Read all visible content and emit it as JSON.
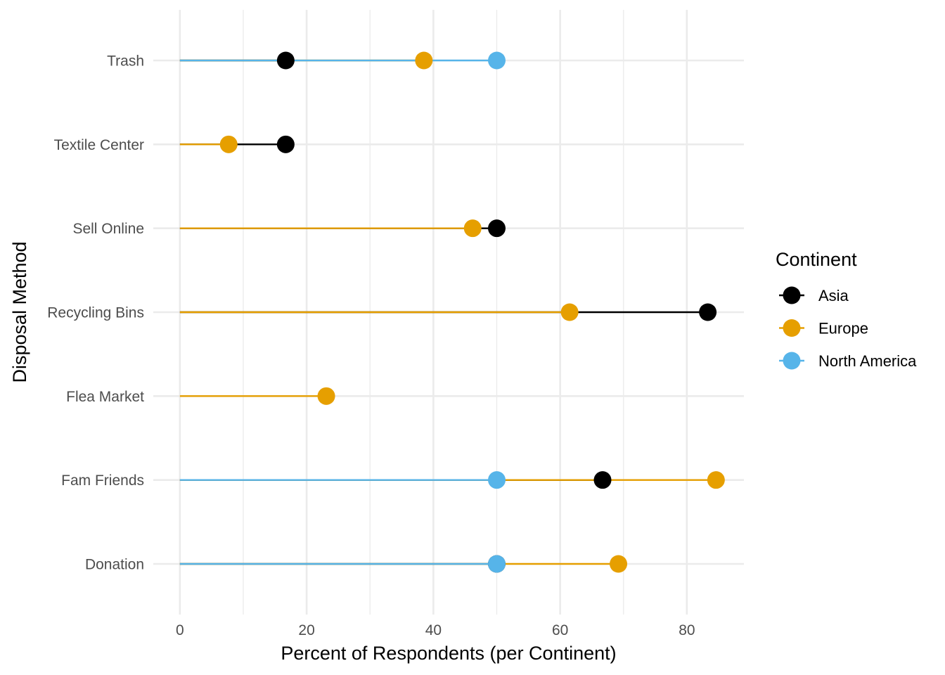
{
  "chart_data": {
    "type": "lollipop",
    "xlabel": "Percent of Respondents (per Continent)",
    "ylabel": "Disposal Method",
    "xlim": [
      -4.2,
      89
    ],
    "x_ticks": [
      0,
      20,
      40,
      60,
      80
    ],
    "x_tick_labels": [
      "0",
      "20",
      "40",
      "60",
      "80"
    ],
    "grid": true,
    "legend_position": "right",
    "legend_title": "Continent",
    "categories": [
      "Trash",
      "Textile Center",
      "Sell Online",
      "Recycling Bins",
      "Flea Market",
      "Fam Friends",
      "Donation"
    ],
    "series": [
      {
        "name": "Asia",
        "color": "#000000",
        "values": [
          16.7,
          16.7,
          50.0,
          83.3,
          null,
          66.7,
          50.0
        ]
      },
      {
        "name": "Europe",
        "color": "#E69F00",
        "values": [
          38.5,
          7.7,
          46.2,
          61.5,
          23.1,
          84.6,
          69.2
        ]
      },
      {
        "name": "North America",
        "color": "#56B4E9",
        "values": [
          50.0,
          null,
          null,
          null,
          null,
          50.0,
          50.0
        ]
      }
    ]
  }
}
